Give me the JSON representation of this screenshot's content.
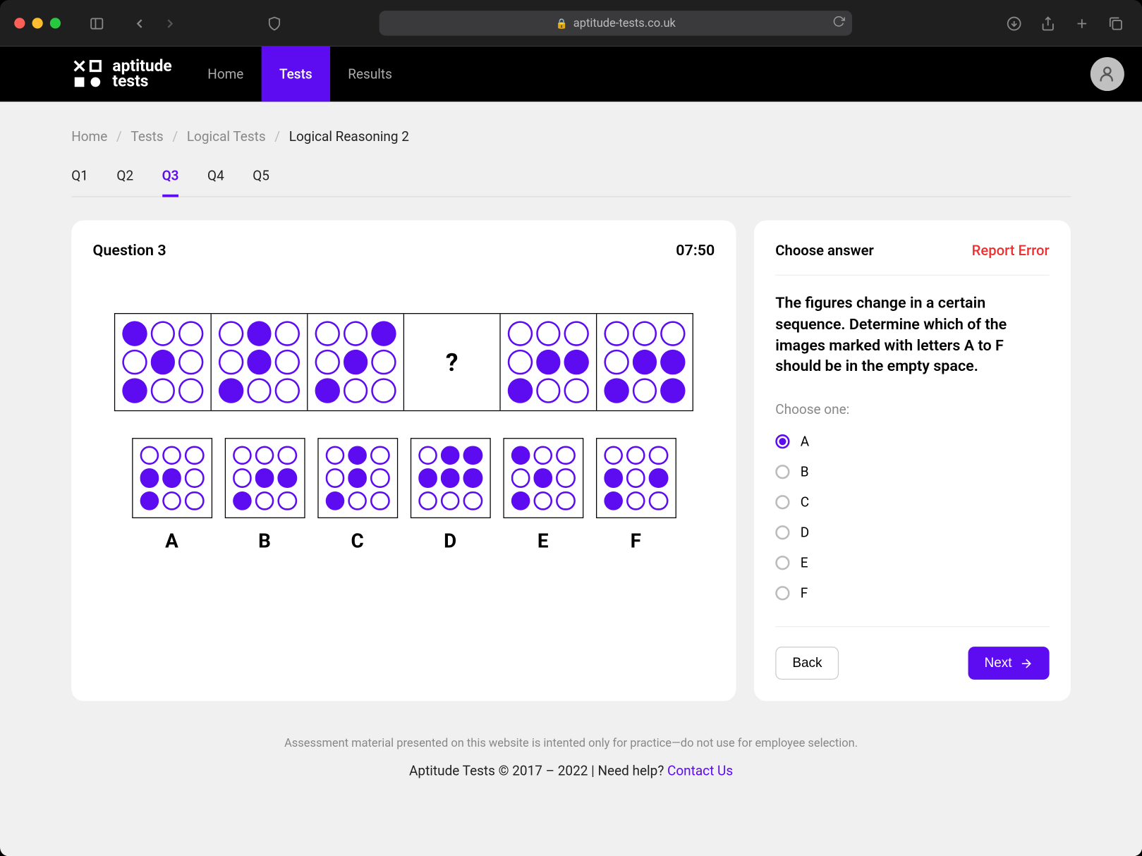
{
  "browser": {
    "url": "aptitude-tests.co.uk"
  },
  "nav": {
    "brand_line1": "aptitude",
    "brand_line2": "tests",
    "links": [
      "Home",
      "Tests",
      "Results"
    ],
    "active_index": 1
  },
  "breadcrumb": {
    "items": [
      "Home",
      "Tests",
      "Logical Tests"
    ],
    "current": "Logical Reasoning 2"
  },
  "qtabs": {
    "items": [
      "Q1",
      "Q2",
      "Q3",
      "Q4",
      "Q5"
    ],
    "active_index": 2
  },
  "question": {
    "title": "Question 3",
    "timer": "07:50",
    "colors": {
      "accent": "#5d0bf0"
    },
    "sequence": [
      [
        1,
        0,
        0,
        0,
        1,
        0,
        1,
        0,
        0
      ],
      [
        0,
        1,
        0,
        0,
        1,
        0,
        1,
        0,
        0
      ],
      [
        0,
        0,
        1,
        0,
        1,
        0,
        1,
        0,
        0
      ],
      null,
      [
        0,
        0,
        0,
        0,
        1,
        1,
        1,
        0,
        0
      ],
      [
        0,
        0,
        0,
        0,
        1,
        1,
        1,
        0,
        1
      ]
    ],
    "options": [
      {
        "label": "A",
        "grid": [
          0,
          0,
          0,
          1,
          1,
          0,
          1,
          0,
          0
        ]
      },
      {
        "label": "B",
        "grid": [
          0,
          0,
          0,
          0,
          1,
          1,
          1,
          0,
          0
        ]
      },
      {
        "label": "C",
        "grid": [
          0,
          1,
          0,
          0,
          1,
          0,
          1,
          0,
          0
        ]
      },
      {
        "label": "D",
        "grid": [
          0,
          1,
          1,
          1,
          1,
          1,
          0,
          0,
          0
        ]
      },
      {
        "label": "E",
        "grid": [
          1,
          0,
          0,
          0,
          1,
          0,
          1,
          0,
          0
        ]
      },
      {
        "label": "F",
        "grid": [
          0,
          0,
          0,
          1,
          0,
          1,
          1,
          0,
          0
        ]
      }
    ]
  },
  "answer": {
    "header": "Choose answer",
    "report": "Report Error",
    "instruction": "The figures change in a certain sequence. Determine which of the images marked with letters A to F should be in the empty space.",
    "choose_one": "Choose one:",
    "choices": [
      "A",
      "B",
      "C",
      "D",
      "E",
      "F"
    ],
    "selected_index": 0,
    "back": "Back",
    "next": "Next"
  },
  "footer": {
    "disclaimer": "Assessment material presented on this website is intented only for practice—do not use for employee selection.",
    "copyright": "Aptitude Tests © 2017 – 2022 | Need help? ",
    "contact": "Contact Us"
  }
}
